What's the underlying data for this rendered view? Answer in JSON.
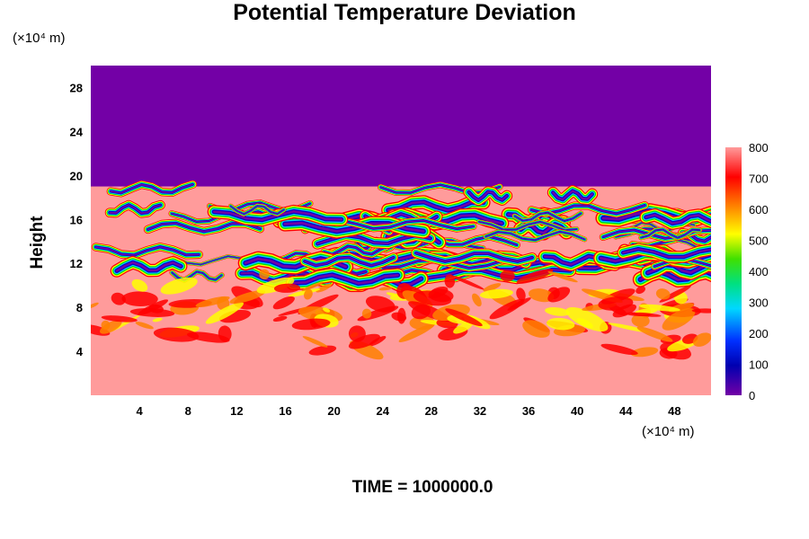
{
  "chart_data": {
    "type": "heatmap",
    "title": "Potential Temperature Deviation",
    "ylabel": "Height",
    "y_unit": "(×10⁴ m)",
    "x_unit": "(×10⁴ m)",
    "footer": "TIME = 1000000.0",
    "xlim": [
      0,
      51
    ],
    "ylim": [
      0,
      30
    ],
    "x_ticks": [
      4,
      8,
      12,
      16,
      20,
      24,
      28,
      32,
      36,
      40,
      44,
      48
    ],
    "y_ticks": [
      4,
      8,
      12,
      16,
      20,
      24,
      28
    ],
    "colorbar": {
      "range": [
        0,
        800
      ],
      "ticks": [
        0,
        100,
        200,
        300,
        400,
        500,
        600,
        700,
        800
      ]
    },
    "fields": [
      {
        "region": "upper layer",
        "y_range": [
          19,
          30
        ],
        "value": 0
      },
      {
        "region": "turbulent band",
        "y_range": [
          10,
          20
        ],
        "value_range": [
          0,
          800
        ]
      },
      {
        "region": "lower layer",
        "y_range": [
          0,
          10
        ],
        "value": 800
      }
    ],
    "colors": {
      "low": "#7300a6",
      "high": "#ff9b9b",
      "active": [
        "#0000cc",
        "#00c8ff",
        "#00e000",
        "#ffff00",
        "#ff8000",
        "#ff0000"
      ]
    }
  }
}
